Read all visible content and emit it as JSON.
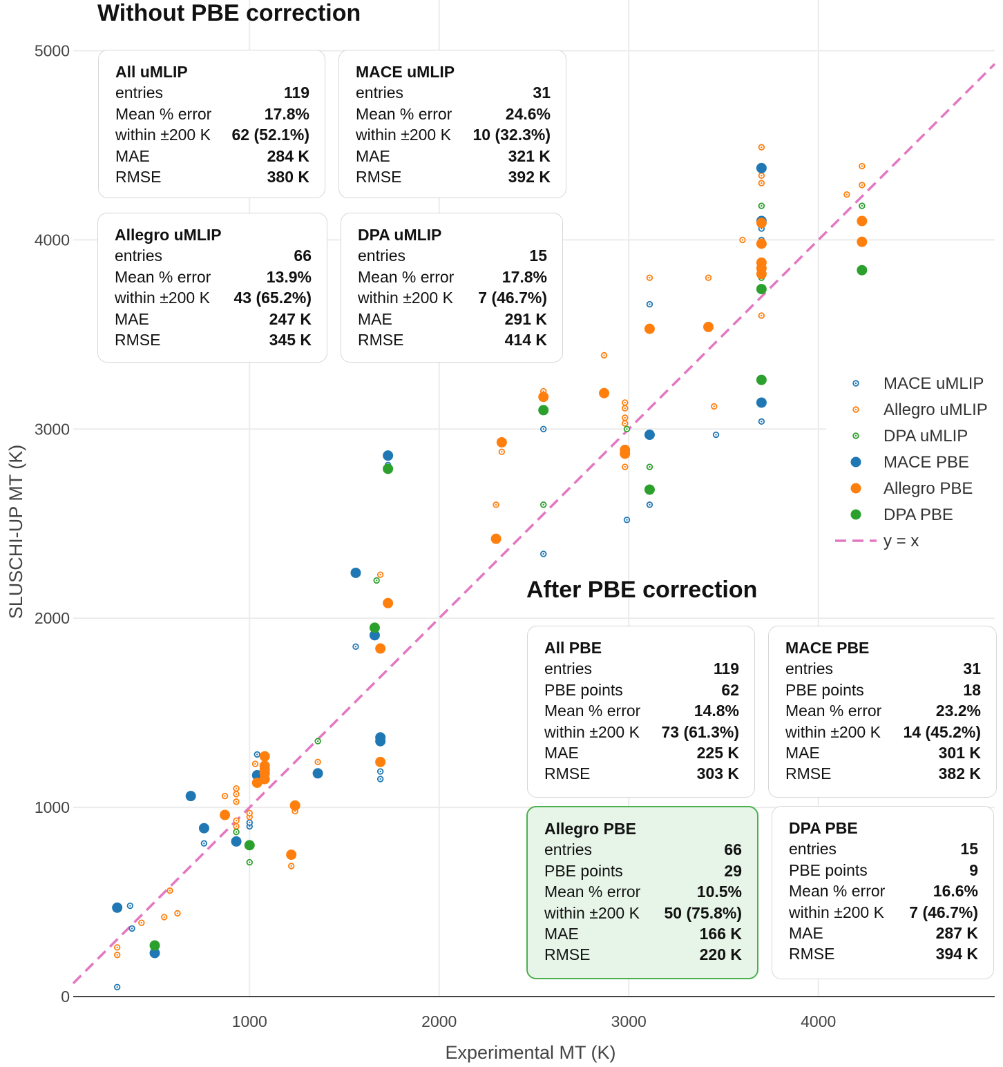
{
  "chart_data": {
    "type": "scatter",
    "xlabel": "Experimental MT (K)",
    "ylabel": "SLUSCHI-UP MT (K)",
    "xlim": [
      70,
      4930
    ],
    "ylim": [
      0,
      5000
    ],
    "xticks": [
      1000,
      2000,
      3000,
      4000
    ],
    "yticks": [
      0,
      1000,
      2000,
      3000,
      4000,
      5000
    ],
    "grid": true,
    "legend_position": "right",
    "reference_line": {
      "name": "y = x",
      "color": "#e377c2",
      "style": "dashed"
    },
    "series": [
      {
        "name": "MACE uMLIP",
        "color": "#1f77b4",
        "marker": "small-ring",
        "points": [
          [
            302,
            50
          ],
          [
            370,
            480
          ],
          [
            380,
            360
          ],
          [
            760,
            810
          ],
          [
            1000,
            900
          ],
          [
            1000,
            920
          ],
          [
            1040,
            1280
          ],
          [
            1560,
            1850
          ],
          [
            1690,
            1150
          ],
          [
            1690,
            1190
          ],
          [
            1730,
            2810
          ],
          [
            2550,
            2340
          ],
          [
            2550,
            3000
          ],
          [
            2990,
            2520
          ],
          [
            3110,
            2600
          ],
          [
            3110,
            3660
          ],
          [
            3460,
            2970
          ],
          [
            3700,
            3040
          ],
          [
            3700,
            4000
          ],
          [
            3700,
            4060
          ],
          [
            3700,
            4110
          ]
        ]
      },
      {
        "name": "Allegro uMLIP",
        "color": "#ff7f0e",
        "marker": "small-ring",
        "points": [
          [
            302,
            220
          ],
          [
            302,
            260
          ],
          [
            430,
            390
          ],
          [
            550,
            420
          ],
          [
            580,
            560
          ],
          [
            620,
            440
          ],
          [
            870,
            1060
          ],
          [
            930,
            900
          ],
          [
            930,
            930
          ],
          [
            930,
            1030
          ],
          [
            930,
            1070
          ],
          [
            930,
            1100
          ],
          [
            1000,
            950
          ],
          [
            1000,
            970
          ],
          [
            1030,
            1230
          ],
          [
            1080,
            1270
          ],
          [
            1220,
            690
          ],
          [
            1240,
            980
          ],
          [
            1360,
            1240
          ],
          [
            1690,
            2230
          ],
          [
            1730,
            2870
          ],
          [
            2300,
            2600
          ],
          [
            2330,
            2880
          ],
          [
            2550,
            3200
          ],
          [
            2870,
            3390
          ],
          [
            2980,
            2800
          ],
          [
            2980,
            3030
          ],
          [
            2980,
            3060
          ],
          [
            2980,
            3110
          ],
          [
            2980,
            3140
          ],
          [
            3110,
            3800
          ],
          [
            3420,
            3800
          ],
          [
            3450,
            3120
          ],
          [
            3600,
            4000
          ],
          [
            3700,
            3600
          ],
          [
            3700,
            4300
          ],
          [
            3700,
            4340
          ],
          [
            3700,
            4490
          ],
          [
            4150,
            4240
          ],
          [
            4230,
            4290
          ],
          [
            4230,
            4390
          ]
        ]
      },
      {
        "name": "DPA uMLIP",
        "color": "#2ca02c",
        "marker": "small-ring",
        "points": [
          [
            930,
            870
          ],
          [
            1000,
            710
          ],
          [
            1360,
            1350
          ],
          [
            1670,
            2200
          ],
          [
            2550,
            2600
          ],
          [
            2990,
            3000
          ],
          [
            3110,
            2800
          ],
          [
            3700,
            3800
          ],
          [
            3700,
            4180
          ],
          [
            4230,
            4180
          ]
        ]
      },
      {
        "name": "MACE PBE",
        "color": "#1f77b4",
        "marker": "filled",
        "points": [
          [
            302,
            470
          ],
          [
            500,
            230
          ],
          [
            690,
            1060
          ],
          [
            760,
            890
          ],
          [
            930,
            820
          ],
          [
            1040,
            1170
          ],
          [
            1360,
            1180
          ],
          [
            1560,
            2240
          ],
          [
            1660,
            1910
          ],
          [
            1690,
            1350
          ],
          [
            1690,
            1370
          ],
          [
            1730,
            2860
          ],
          [
            3110,
            2970
          ],
          [
            3700,
            3140
          ],
          [
            3700,
            4100
          ],
          [
            3700,
            4380
          ]
        ]
      },
      {
        "name": "Allegro PBE",
        "color": "#ff7f0e",
        "marker": "filled",
        "points": [
          [
            870,
            960
          ],
          [
            1040,
            1130
          ],
          [
            1080,
            1150
          ],
          [
            1080,
            1180
          ],
          [
            1080,
            1200
          ],
          [
            1080,
            1220
          ],
          [
            1080,
            1270
          ],
          [
            1220,
            750
          ],
          [
            1240,
            1010
          ],
          [
            1690,
            1240
          ],
          [
            1690,
            1840
          ],
          [
            1730,
            2080
          ],
          [
            2300,
            2420
          ],
          [
            2330,
            2930
          ],
          [
            2550,
            3170
          ],
          [
            2870,
            3190
          ],
          [
            2980,
            2870
          ],
          [
            2980,
            2890
          ],
          [
            3110,
            3530
          ],
          [
            3420,
            3540
          ],
          [
            3700,
            3820
          ],
          [
            3700,
            3850
          ],
          [
            3700,
            3880
          ],
          [
            3700,
            3980
          ],
          [
            3700,
            4090
          ],
          [
            4230,
            3990
          ],
          [
            4230,
            4100
          ]
        ]
      },
      {
        "name": "DPA PBE",
        "color": "#2ca02c",
        "marker": "filled",
        "points": [
          [
            500,
            270
          ],
          [
            1000,
            800
          ],
          [
            1660,
            1950
          ],
          [
            1730,
            2790
          ],
          [
            2550,
            3100
          ],
          [
            3110,
            2680
          ],
          [
            3700,
            3260
          ],
          [
            3700,
            3740
          ],
          [
            4230,
            3840
          ]
        ]
      }
    ]
  },
  "panels": {
    "before_title": "Without PBE correction",
    "after_title": "After PBE correction"
  },
  "boxes": [
    {
      "title": "All uMLIP",
      "rows": [
        [
          "entries",
          "119"
        ],
        [
          "Mean % error",
          "17.8%"
        ],
        [
          "within ±200 K",
          "62 (52.1%)"
        ],
        [
          "MAE",
          "284 K"
        ],
        [
          "RMSE",
          "380 K"
        ]
      ]
    },
    {
      "title": "MACE uMLIP",
      "rows": [
        [
          "entries",
          "31"
        ],
        [
          "Mean % error",
          "24.6%"
        ],
        [
          "within ±200 K",
          "10 (32.3%)"
        ],
        [
          "MAE",
          "321 K"
        ],
        [
          "RMSE",
          "392 K"
        ]
      ]
    },
    {
      "title": "Allegro uMLIP",
      "rows": [
        [
          "entries",
          "66"
        ],
        [
          "Mean % error",
          "13.9%"
        ],
        [
          "within ±200 K",
          "43 (65.2%)"
        ],
        [
          "MAE",
          "247 K"
        ],
        [
          "RMSE",
          "345 K"
        ]
      ]
    },
    {
      "title": "DPA uMLIP",
      "rows": [
        [
          "entries",
          "15"
        ],
        [
          "Mean % error",
          "17.8%"
        ],
        [
          "within ±200 K",
          "7 (46.7%)"
        ],
        [
          "MAE",
          "291 K"
        ],
        [
          "RMSE",
          "414 K"
        ]
      ]
    },
    {
      "title": "All PBE",
      "rows": [
        [
          "entries",
          "119"
        ],
        [
          "PBE points",
          "62"
        ],
        [
          "Mean % error",
          "14.8%"
        ],
        [
          "within ±200 K",
          "73 (61.3%)"
        ],
        [
          "MAE",
          "225 K"
        ],
        [
          "RMSE",
          "303 K"
        ]
      ]
    },
    {
      "title": "MACE PBE",
      "rows": [
        [
          "entries",
          "31"
        ],
        [
          "PBE points",
          "18"
        ],
        [
          "Mean % error",
          "23.2%"
        ],
        [
          "within ±200 K",
          "14 (45.2%)"
        ],
        [
          "MAE",
          "301 K"
        ],
        [
          "RMSE",
          "382 K"
        ]
      ]
    },
    {
      "title": "Allegro PBE",
      "highlight": true,
      "rows": [
        [
          "entries",
          "66"
        ],
        [
          "PBE points",
          "29"
        ],
        [
          "Mean % error",
          "10.5%"
        ],
        [
          "within ±200 K",
          "50 (75.8%)"
        ],
        [
          "MAE",
          "166 K"
        ],
        [
          "RMSE",
          "220 K"
        ]
      ]
    },
    {
      "title": "DPA PBE",
      "rows": [
        [
          "entries",
          "15"
        ],
        [
          "PBE points",
          "9"
        ],
        [
          "Mean % error",
          "16.6%"
        ],
        [
          "within ±200 K",
          "7 (46.7%)"
        ],
        [
          "MAE",
          "287 K"
        ],
        [
          "RMSE",
          "394 K"
        ]
      ]
    }
  ]
}
